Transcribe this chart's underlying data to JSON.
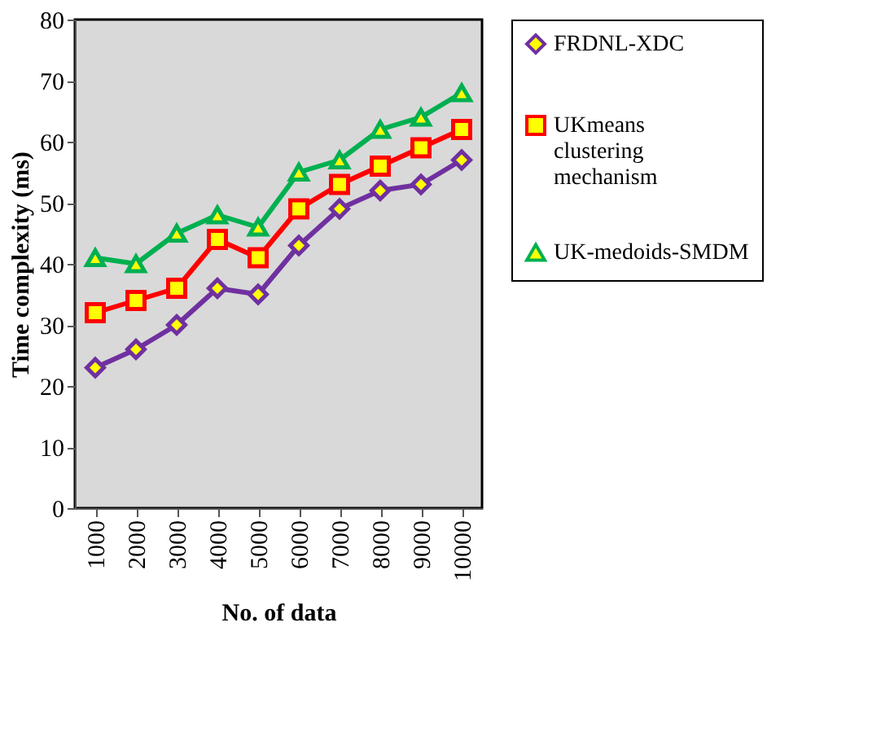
{
  "chart_data": {
    "type": "line",
    "xlabel": "No. of data",
    "ylabel": "Time complexity (ms)",
    "categories": [
      "1000",
      "2000",
      "3000",
      "4000",
      "5000",
      "6000",
      "7000",
      "8000",
      "9000",
      "10000"
    ],
    "series": [
      {
        "name": "FRDNL-XDC",
        "color": "#7030a0",
        "marker": "diamond",
        "values": [
          23,
          26,
          30,
          36,
          35,
          43,
          49,
          52,
          53,
          57
        ]
      },
      {
        "name": "UKmeans clustering mechanism",
        "color": "#ff0000",
        "marker": "square",
        "values": [
          32,
          34,
          36,
          44,
          41,
          49,
          53,
          56,
          59,
          62
        ]
      },
      {
        "name": "UK-medoids-SMDM",
        "color": "#00b050",
        "marker": "triangle",
        "values": [
          41,
          40,
          45,
          48,
          46,
          55,
          57,
          62,
          64,
          68
        ]
      }
    ],
    "ylim": [
      0,
      80
    ],
    "yticks": [
      0,
      10,
      20,
      30,
      40,
      50,
      60,
      70,
      80
    ],
    "grid": false,
    "legend": "right",
    "line_style": "solid"
  }
}
